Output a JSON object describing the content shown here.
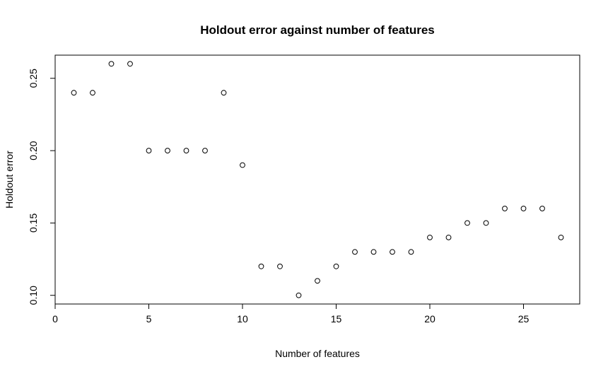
{
  "chart_data": {
    "type": "scatter",
    "title": "Holdout error against number of features",
    "xlabel": "Number of features",
    "ylabel": "Holdout error",
    "x": [
      1,
      2,
      3,
      4,
      5,
      6,
      7,
      8,
      9,
      10,
      11,
      12,
      13,
      14,
      15,
      16,
      17,
      18,
      19,
      20,
      21,
      22,
      23,
      24,
      25,
      26,
      27
    ],
    "y": [
      0.24,
      0.24,
      0.26,
      0.26,
      0.2,
      0.2,
      0.2,
      0.2,
      0.24,
      0.19,
      0.12,
      0.12,
      0.1,
      0.11,
      0.12,
      0.13,
      0.13,
      0.13,
      0.13,
      0.14,
      0.14,
      0.15,
      0.15,
      0.16,
      0.16,
      0.16,
      0.14
    ],
    "xlim": [
      0,
      28
    ],
    "ylim": [
      0.094,
      0.266
    ],
    "xticks": [
      0,
      5,
      10,
      15,
      20,
      25
    ],
    "xtick_labels": [
      "0",
      "5",
      "10",
      "15",
      "20",
      "25"
    ],
    "yticks": [
      0.1,
      0.15,
      0.2,
      0.25
    ],
    "ytick_labels": [
      "0.10",
      "0.15",
      "0.20",
      "0.25"
    ],
    "grid": false,
    "marker": "open-circle",
    "marker_color": "#000000"
  }
}
